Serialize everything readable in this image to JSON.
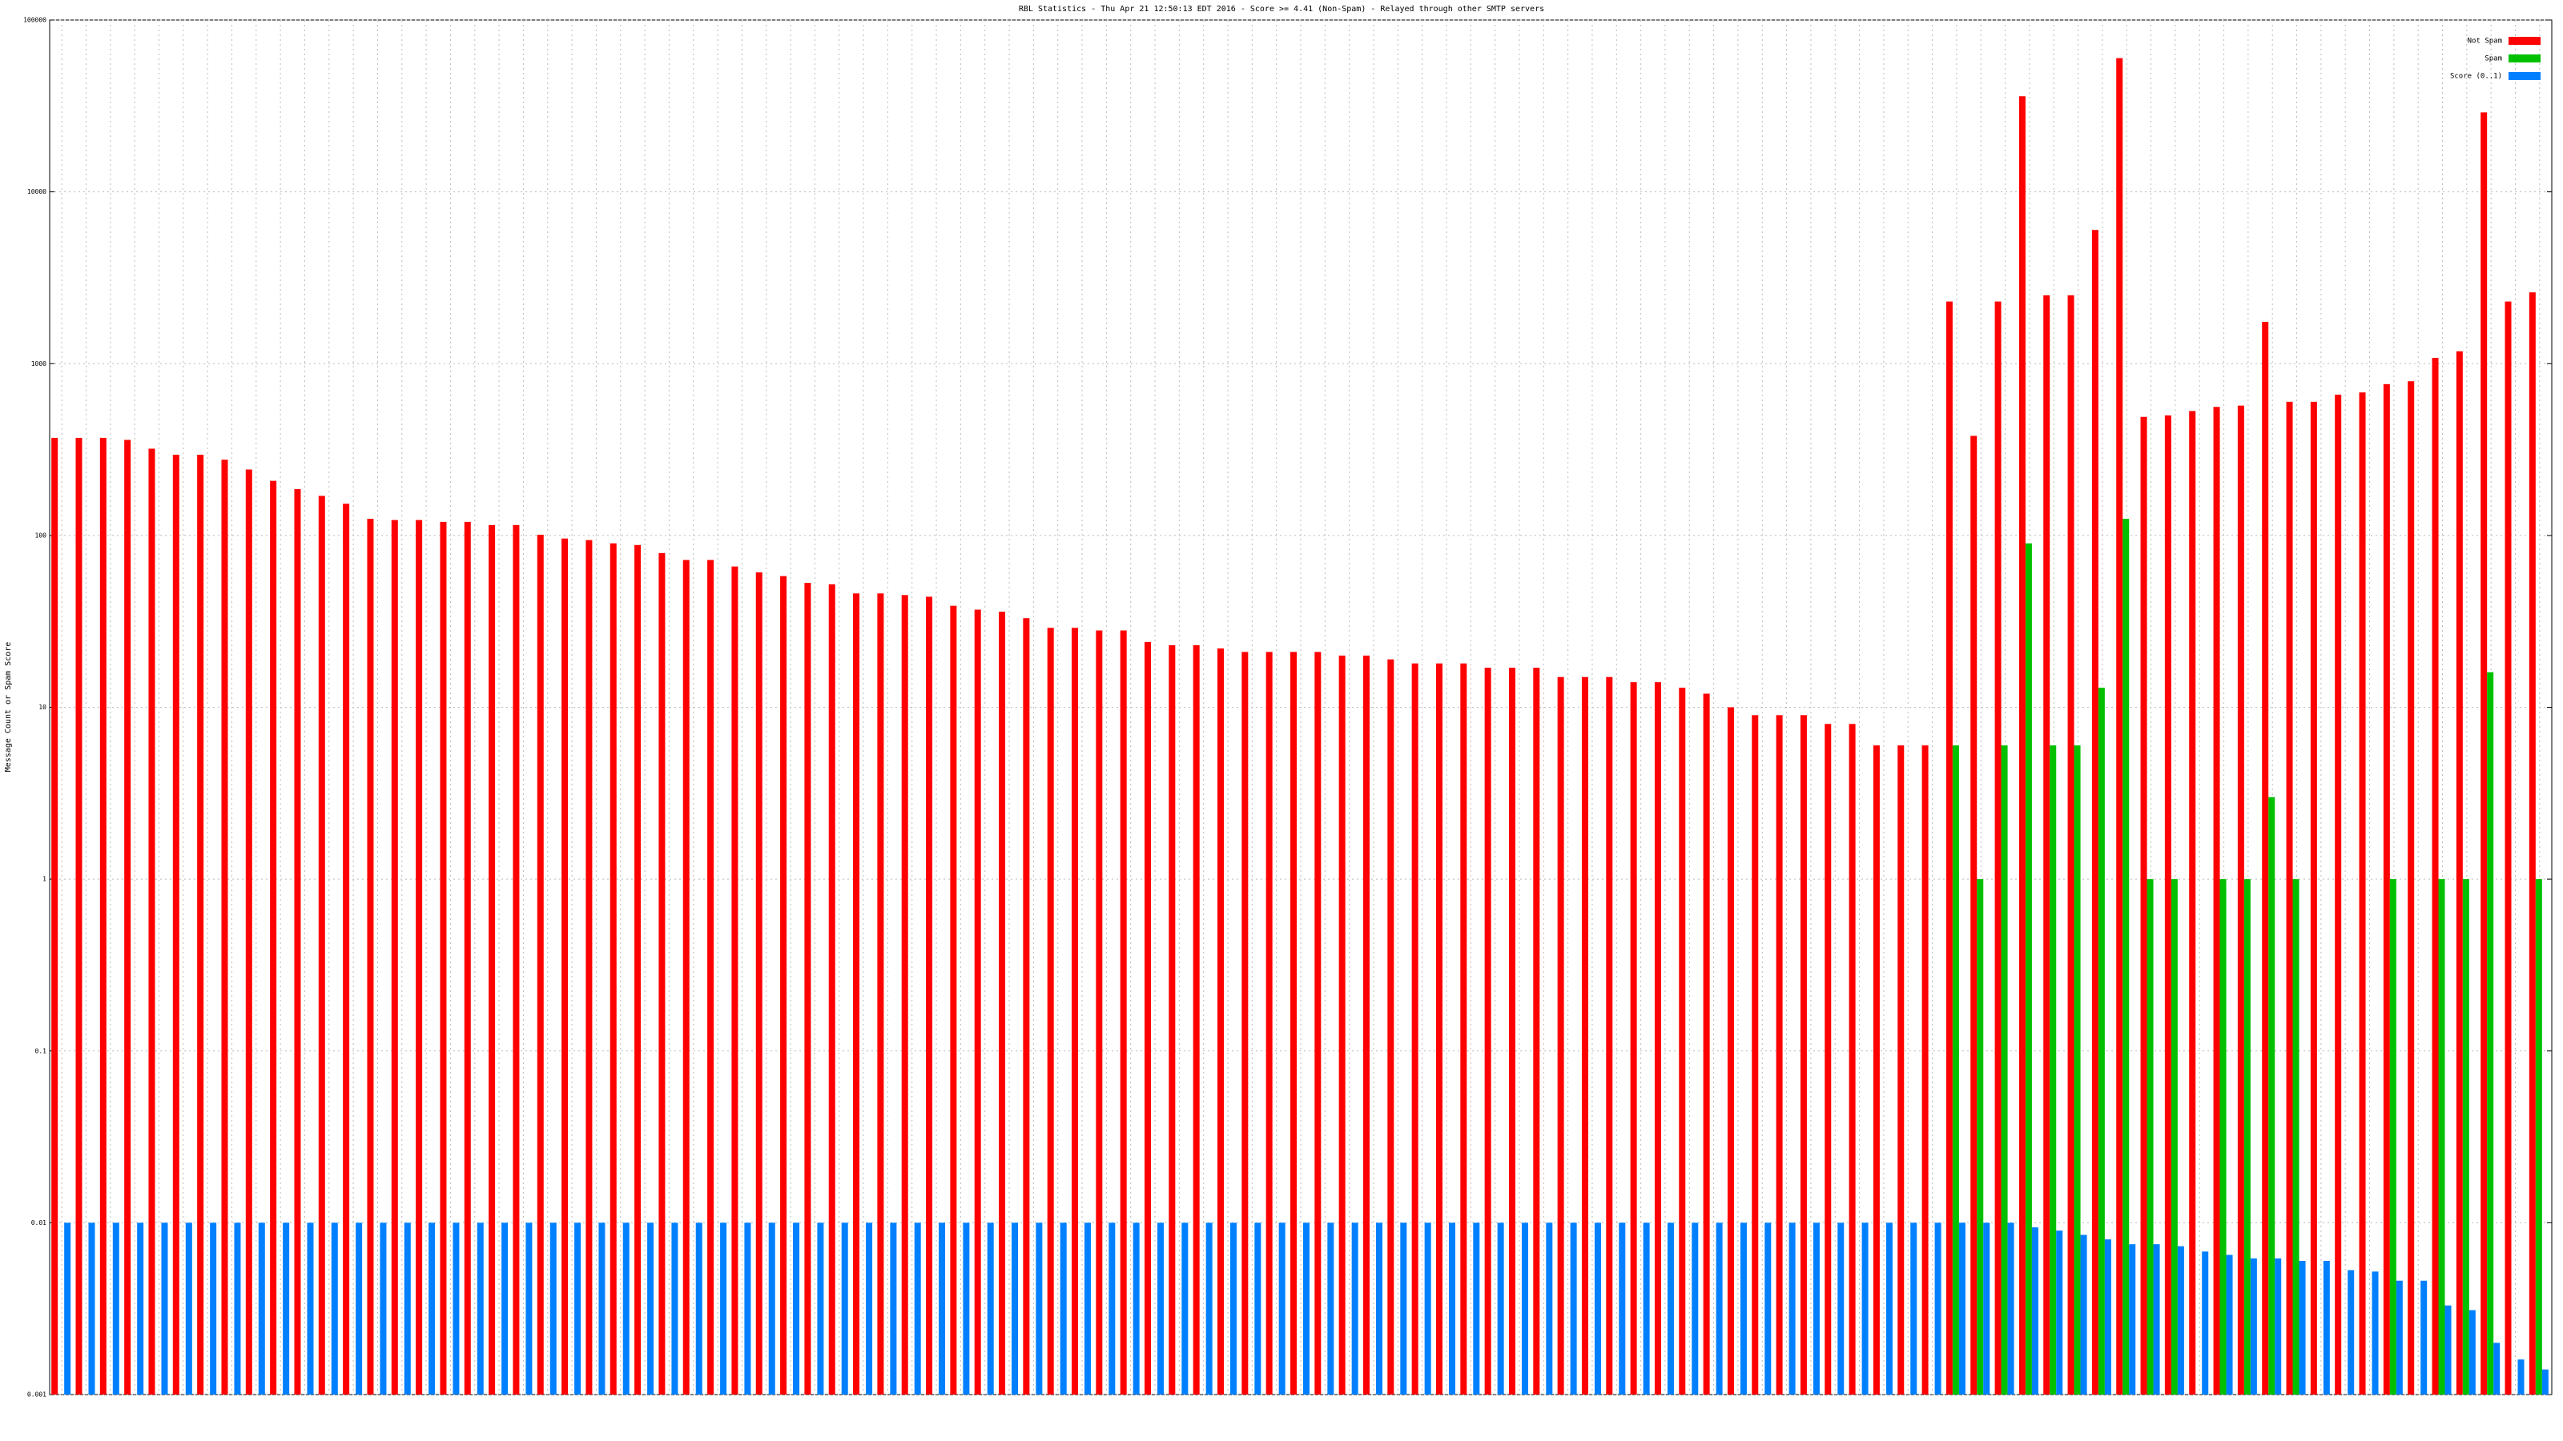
{
  "chart_data": {
    "type": "bar",
    "title": "RBL Statistics - Thu Apr 21 12:50:13 EDT 2016 - Score >= 4.41 (Non-Spam) - Relayed through other SMTP servers",
    "y_label": "Message Count or Spam Score",
    "log_scale": true,
    "grid": true,
    "legend": "top-right",
    "ylim": [
      0.001,
      100000
    ],
    "yticks": [
      0.001,
      0.01,
      0.1,
      1,
      10,
      100,
      1000,
      10000,
      100000
    ],
    "categories": [
      null,
      null,
      null,
      null,
      null,
      null,
      null,
      null,
      null,
      null,
      null,
      null,
      null,
      null,
      null,
      null,
      null,
      null,
      null,
      null,
      null,
      null,
      null,
      null,
      null,
      null,
      null,
      null,
      null,
      null,
      null,
      null,
      null,
      null,
      null,
      null,
      null,
      null,
      null,
      null,
      null,
      null,
      null,
      null,
      null,
      null,
      null,
      null,
      null,
      null,
      null,
      null,
      null,
      null,
      null,
      null,
      null,
      null,
      null,
      null,
      null,
      null,
      null,
      null,
      null,
      null,
      null,
      null,
      null,
      null,
      null,
      null,
      null,
      null,
      null,
      null,
      null,
      null,
      null,
      null,
      null,
      null,
      null,
      null,
      null,
      null,
      null,
      null,
      null,
      null,
      null,
      null,
      null,
      null,
      null,
      null,
      null,
      null,
      null,
      null,
      null,
      null,
      null
    ],
    "series": [
      {
        "name": "Not Spam",
        "color": "#ff0000",
        "values": [
          370,
          370,
          370,
          360,
          320,
          295,
          295,
          276,
          242,
          208,
          186,
          170,
          153,
          125,
          123,
          123,
          120,
          120,
          115,
          115,
          101,
          96,
          94,
          90,
          88,
          79,
          72,
          72,
          66,
          61,
          58,
          53,
          52,
          46,
          46,
          45,
          44,
          39,
          37,
          36,
          33,
          29,
          29,
          28,
          28,
          24,
          23,
          23,
          22,
          21,
          21,
          21,
          21,
          20,
          20,
          19,
          18,
          18,
          18,
          17,
          17,
          17,
          15,
          15,
          15,
          14,
          14,
          13,
          12,
          10,
          9,
          9,
          9,
          8,
          8,
          6,
          6,
          6,
          2300,
          380,
          2300,
          36000,
          2500,
          2500,
          6000,
          60000,
          490,
          500,
          530,
          560,
          570,
          1750,
          600,
          600,
          660,
          680,
          760,
          790,
          1080,
          1180,
          29000,
          2300,
          2600
        ]
      },
      {
        "name": "Spam",
        "color": "#00c000",
        "values": [
          null,
          null,
          null,
          null,
          null,
          null,
          null,
          null,
          null,
          null,
          null,
          null,
          null,
          null,
          null,
          null,
          null,
          null,
          null,
          null,
          null,
          null,
          null,
          null,
          null,
          null,
          null,
          null,
          null,
          null,
          null,
          null,
          null,
          null,
          null,
          null,
          null,
          null,
          null,
          null,
          null,
          null,
          null,
          null,
          null,
          null,
          null,
          null,
          null,
          null,
          null,
          null,
          null,
          null,
          null,
          null,
          null,
          null,
          null,
          null,
          null,
          null,
          null,
          null,
          null,
          null,
          null,
          null,
          null,
          null,
          null,
          null,
          null,
          null,
          null,
          null,
          null,
          null,
          6,
          1,
          6,
          90,
          6,
          6,
          13,
          125,
          1,
          1,
          null,
          1,
          1,
          3,
          1,
          null,
          null,
          null,
          1,
          null,
          1,
          1,
          16,
          null,
          1
        ]
      },
      {
        "name": "Score (0..1)",
        "color": "#0080ff",
        "values": [
          0.01,
          0.01,
          0.01,
          0.01,
          0.01,
          0.01,
          0.01,
          0.01,
          0.01,
          0.01,
          0.01,
          0.01,
          0.01,
          0.01,
          0.01,
          0.01,
          0.01,
          0.01,
          0.01,
          0.01,
          0.01,
          0.01,
          0.01,
          0.01,
          0.01,
          0.01,
          0.01,
          0.01,
          0.01,
          0.01,
          0.01,
          0.01,
          0.01,
          0.01,
          0.01,
          0.01,
          0.01,
          0.01,
          0.01,
          0.01,
          0.01,
          0.01,
          0.01,
          0.01,
          0.01,
          0.01,
          0.01,
          0.01,
          0.01,
          0.01,
          0.01,
          0.01,
          0.01,
          0.01,
          0.01,
          0.01,
          0.01,
          0.01,
          0.01,
          0.01,
          0.01,
          0.01,
          0.01,
          0.01,
          0.01,
          0.01,
          0.01,
          0.01,
          0.01,
          0.01,
          0.01,
          0.01,
          0.01,
          0.01,
          0.01,
          0.01,
          0.01,
          0.01,
          0.01,
          0.01,
          0.01,
          0.0094,
          0.009,
          0.0085,
          0.008,
          0.0075,
          0.0075,
          0.0073,
          0.0068,
          0.0065,
          0.0062,
          0.0062,
          0.006,
          0.006,
          0.0053,
          0.0052,
          0.0046,
          0.0046,
          0.0033,
          0.0031,
          0.002,
          0.0016,
          0.0014
        ]
      }
    ]
  }
}
